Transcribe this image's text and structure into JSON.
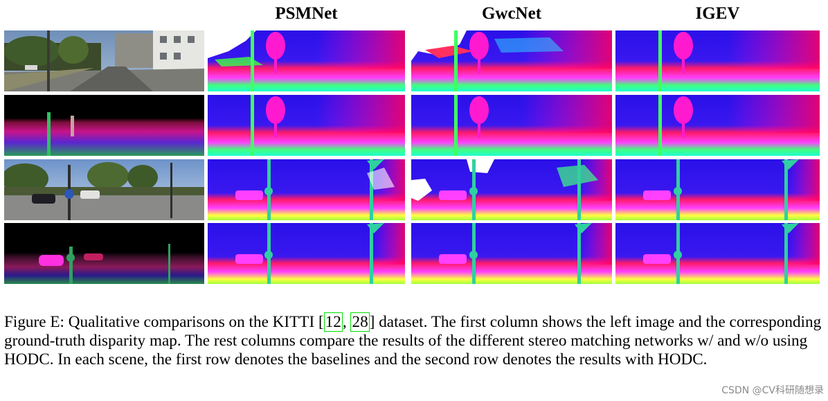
{
  "figure": {
    "columns": [
      "PSMNet",
      "GwcNet",
      "IGEV"
    ],
    "rows": [
      {
        "scene": "scene-1",
        "input": "left-image",
        "variant": "baseline"
      },
      {
        "scene": "scene-1",
        "input": "ground-truth-disparity",
        "variant": "with-hodc"
      },
      {
        "scene": "scene-2",
        "input": "left-image",
        "variant": "baseline"
      },
      {
        "scene": "scene-2",
        "input": "ground-truth-disparity",
        "variant": "with-hodc"
      }
    ]
  },
  "caption": {
    "text_before_cite": "Figure E: Qualitative comparisons on the KITTI [",
    "cite_1": "12",
    "cite_sep": ", ",
    "cite_2": "28",
    "text_after_cite": "] dataset. The first column shows the left image and the corresponding ground-truth disparity map. The rest columns compare the results of the different stereo matching networks w/ and w/o using HODC. In each scene, the first row denotes the baselines and the second row denotes the results with HODC."
  },
  "watermark": "CSDN @CV科研随想录"
}
